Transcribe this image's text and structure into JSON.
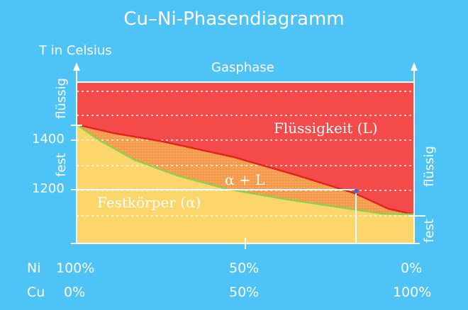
{
  "title": "Cu–Ni-Phasendiagramm",
  "y_axis_title": "T in Celsius",
  "top_region_label": "Gasphase",
  "regions": {
    "liquid": "Flüssigkeit (L)",
    "mixed": "α + L",
    "solid": "Festkörper (α)"
  },
  "y_ticks": [
    "1400",
    "1200"
  ],
  "left_axis_labels": {
    "upper": "flüssig",
    "lower": "fest"
  },
  "right_axis_labels": {
    "upper": "flüssig",
    "lower": "fest"
  },
  "composition": {
    "ni_label": "Ni",
    "cu_label": "Cu",
    "ni_values": [
      "100%",
      "50%",
      "0%"
    ],
    "cu_values": [
      "0%",
      "50%",
      "100%"
    ]
  },
  "colors": {
    "background": "#4ec3f5",
    "liquid": "#f44a4a",
    "solid": "#fdd66b",
    "mixed": "#f59a4b",
    "liquidus": "#e2251c",
    "solidus": "#8fcf4e"
  }
}
